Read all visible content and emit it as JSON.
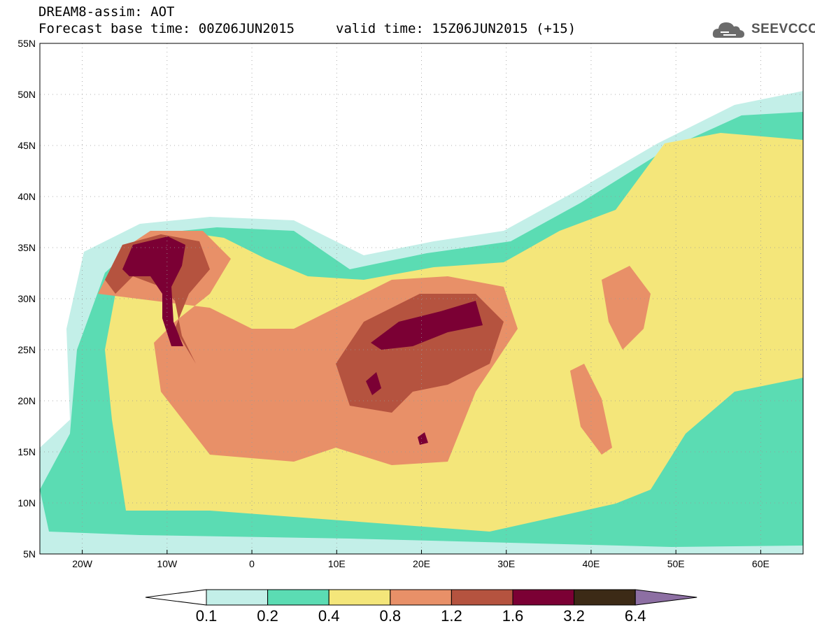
{
  "header": {
    "title": "DREAM8-assim: AOT",
    "base_time": "Forecast base time: 00Z06JUN2015",
    "valid_time": "valid time: 15Z06JUN2015 (+15)"
  },
  "logo": {
    "text": "SEEVCCC",
    "icon": "cloud-icon"
  },
  "map": {
    "lon_range": [
      -25,
      65
    ],
    "lat_range": [
      5,
      55
    ],
    "grid": true,
    "lon_labels": [
      "20W",
      "10W",
      "0",
      "10E",
      "20E",
      "30E",
      "40E",
      "50E",
      "60E"
    ],
    "lat_labels": [
      "55N",
      "50N",
      "45N",
      "40N",
      "35N",
      "30N",
      "25N",
      "20N",
      "15N",
      "10N",
      "5N"
    ]
  },
  "colorbar": {
    "labels": [
      "0.1",
      "0.2",
      "0.4",
      "0.8",
      "1.2",
      "1.6",
      "3.2",
      "6.4"
    ],
    "colors": [
      "#ffffff",
      "#c3efe8",
      "#5bdcb3",
      "#f4e67a",
      "#e89068",
      "#b5533f",
      "#7b0034",
      "#3c2a16",
      "#8d6fa3"
    ]
  }
}
